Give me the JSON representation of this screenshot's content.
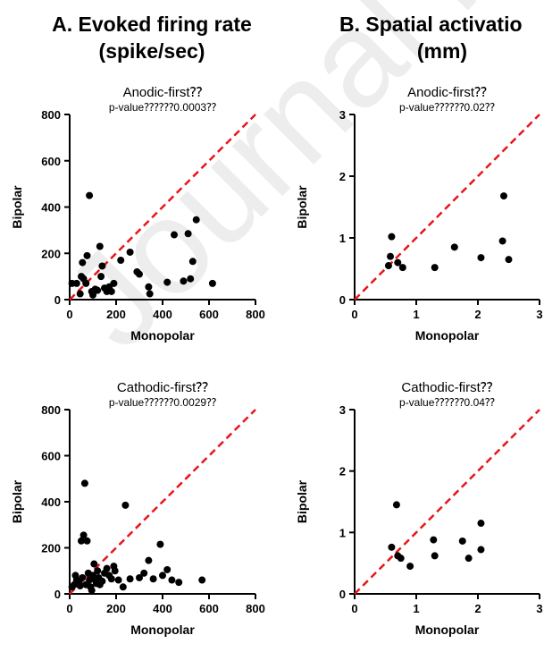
{
  "titles": {
    "a_line1": "A. Evoked firing rate",
    "a_line2": "(spike/sec)",
    "b_line1": "B. Spatial activatio",
    "b_line2": "(mm)"
  },
  "watermark": "Journal Pre",
  "colors": {
    "points": "#000000",
    "identity_line": "#e8151b",
    "axes": "#000000"
  },
  "chart_data": [
    {
      "id": "a-anodic",
      "type": "scatter",
      "title": "Anodic-first⁇",
      "subtitle": "p-value⁇⁇⁇0.0003⁇",
      "xlabel": "Monopolar",
      "ylabel": "Bipolar",
      "xlim": [
        0,
        800
      ],
      "ylim": [
        0,
        800
      ],
      "xticks": [
        0,
        200,
        400,
        600,
        800
      ],
      "yticks": [
        0,
        200,
        400,
        600,
        800
      ],
      "identity_line": true,
      "points": [
        [
          10,
          70
        ],
        [
          30,
          70
        ],
        [
          45,
          25
        ],
        [
          50,
          100
        ],
        [
          55,
          160
        ],
        [
          60,
          90
        ],
        [
          70,
          70
        ],
        [
          75,
          190
        ],
        [
          85,
          450
        ],
        [
          95,
          35
        ],
        [
          100,
          20
        ],
        [
          110,
          45
        ],
        [
          120,
          40
        ],
        [
          130,
          230
        ],
        [
          135,
          100
        ],
        [
          140,
          145
        ],
        [
          150,
          50
        ],
        [
          160,
          35
        ],
        [
          170,
          55
        ],
        [
          180,
          35
        ],
        [
          190,
          70
        ],
        [
          220,
          170
        ],
        [
          260,
          205
        ],
        [
          290,
          120
        ],
        [
          300,
          110
        ],
        [
          340,
          55
        ],
        [
          345,
          25
        ],
        [
          420,
          75
        ],
        [
          450,
          280
        ],
        [
          490,
          80
        ],
        [
          510,
          285
        ],
        [
          520,
          90
        ],
        [
          530,
          165
        ],
        [
          545,
          345
        ],
        [
          615,
          70
        ]
      ]
    },
    {
      "id": "b-anodic",
      "type": "scatter",
      "title": "Anodic-first⁇",
      "subtitle": "p-value⁇⁇⁇0.02⁇",
      "xlabel": "Monopolar",
      "ylabel": "Bipolar",
      "xlim": [
        0,
        3
      ],
      "ylim": [
        0,
        3
      ],
      "xticks": [
        0,
        1,
        2,
        3
      ],
      "yticks": [
        0,
        1,
        2,
        3
      ],
      "identity_line": true,
      "points": [
        [
          0.55,
          0.55
        ],
        [
          0.58,
          0.7
        ],
        [
          0.6,
          1.02
        ],
        [
          0.7,
          0.6
        ],
        [
          0.78,
          0.52
        ],
        [
          1.3,
          0.52
        ],
        [
          1.62,
          0.85
        ],
        [
          2.05,
          0.68
        ],
        [
          2.4,
          0.95
        ],
        [
          2.42,
          1.68
        ],
        [
          2.5,
          0.65
        ]
      ]
    },
    {
      "id": "a-cathodic",
      "type": "scatter",
      "title": "Cathodic-first⁇",
      "subtitle": "p-value⁇⁇⁇0.0029⁇",
      "xlabel": "Monopolar",
      "ylabel": "Bipolar",
      "xlim": [
        0,
        800
      ],
      "ylim": [
        0,
        800
      ],
      "xticks": [
        0,
        200,
        400,
        600,
        800
      ],
      "yticks": [
        0,
        200,
        400,
        600,
        800
      ],
      "identity_line": true,
      "points": [
        [
          10,
          30
        ],
        [
          20,
          40
        ],
        [
          25,
          80
        ],
        [
          30,
          60
        ],
        [
          40,
          50
        ],
        [
          45,
          35
        ],
        [
          50,
          230
        ],
        [
          55,
          70
        ],
        [
          60,
          255
        ],
        [
          65,
          480
        ],
        [
          70,
          40
        ],
        [
          75,
          230
        ],
        [
          80,
          90
        ],
        [
          85,
          60
        ],
        [
          90,
          30
        ],
        [
          95,
          15
        ],
        [
          100,
          80
        ],
        [
          105,
          130
        ],
        [
          110,
          60
        ],
        [
          115,
          45
        ],
        [
          120,
          100
        ],
        [
          125,
          70
        ],
        [
          130,
          40
        ],
        [
          140,
          55
        ],
        [
          150,
          90
        ],
        [
          160,
          110
        ],
        [
          170,
          80
        ],
        [
          180,
          65
        ],
        [
          190,
          120
        ],
        [
          195,
          100
        ],
        [
          210,
          60
        ],
        [
          230,
          30
        ],
        [
          240,
          385
        ],
        [
          260,
          65
        ],
        [
          300,
          70
        ],
        [
          320,
          90
        ],
        [
          340,
          145
        ],
        [
          360,
          65
        ],
        [
          390,
          215
        ],
        [
          400,
          80
        ],
        [
          420,
          105
        ],
        [
          440,
          60
        ],
        [
          470,
          50
        ],
        [
          570,
          60
        ]
      ]
    },
    {
      "id": "b-cathodic",
      "type": "scatter",
      "title": "Cathodic-first⁇",
      "subtitle": "p-value⁇⁇⁇0.04⁇",
      "xlabel": "Monopolar",
      "ylabel": "Bipolar",
      "xlim": [
        0,
        3
      ],
      "ylim": [
        0,
        3
      ],
      "xticks": [
        0,
        1,
        2,
        3
      ],
      "yticks": [
        0,
        1,
        2,
        3
      ],
      "identity_line": true,
      "points": [
        [
          0.6,
          0.76
        ],
        [
          0.68,
          1.45
        ],
        [
          0.7,
          0.62
        ],
        [
          0.75,
          0.58
        ],
        [
          0.9,
          0.45
        ],
        [
          1.28,
          0.88
        ],
        [
          1.3,
          0.62
        ],
        [
          1.75,
          0.86
        ],
        [
          1.85,
          0.58
        ],
        [
          2.05,
          0.72
        ],
        [
          2.05,
          1.15
        ]
      ]
    }
  ]
}
